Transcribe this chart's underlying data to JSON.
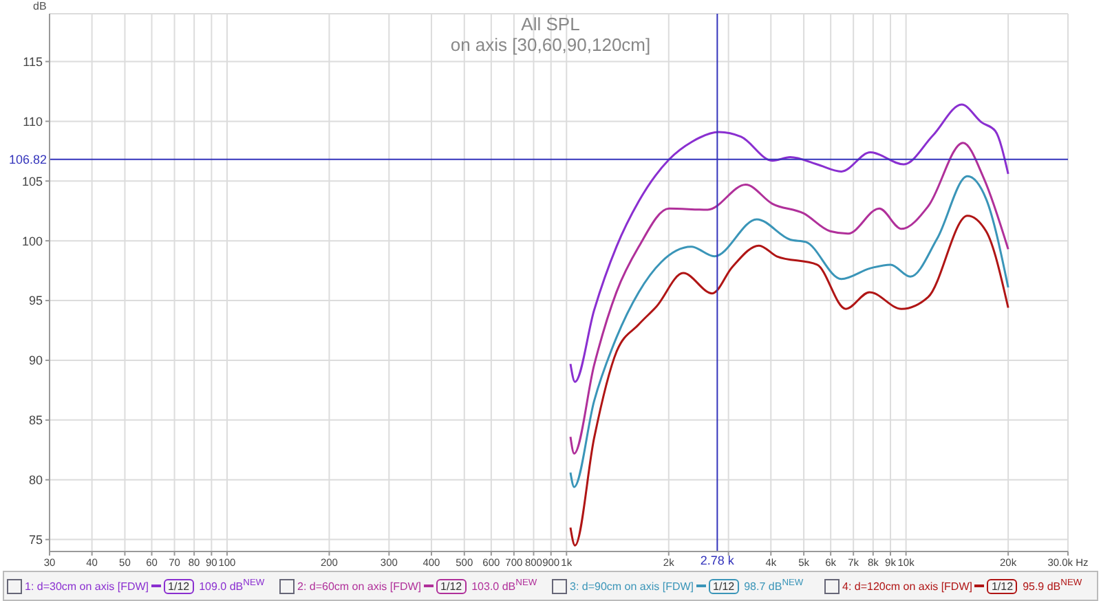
{
  "chart_data": {
    "type": "line",
    "title": "All SPL",
    "subtitle": "on axis [30,60,90,120cm]",
    "ylabel": "dB",
    "xlim": [
      30,
      30000
    ],
    "ylim": [
      74,
      119
    ],
    "log": "x",
    "grid": true,
    "legend": "bottom",
    "marker": "none",
    "line_style": "solid",
    "xticks": [
      30,
      40,
      50,
      60,
      70,
      80,
      90,
      100,
      200,
      300,
      400,
      500,
      600,
      700,
      800,
      900,
      {
        "value": 1000,
        "label": "1k"
      },
      {
        "value": 2000,
        "label": "2k"
      },
      {
        "value": 3000,
        "label": null
      },
      {
        "value": 4000,
        "label": "4k"
      },
      {
        "value": 5000,
        "label": "5k"
      },
      {
        "value": 6000,
        "label": "6k"
      },
      {
        "value": 7000,
        "label": "7k"
      },
      {
        "value": 8000,
        "label": "8k"
      },
      {
        "value": 9000,
        "label": "9k"
      },
      {
        "value": 10000,
        "label": "10k"
      },
      {
        "value": 20000,
        "label": "20k"
      },
      {
        "value": 30000,
        "label": "30.0k Hz"
      }
    ],
    "yticks": [
      75,
      80,
      85,
      90,
      95,
      100,
      105,
      110,
      115
    ],
    "ref_lines": [
      {
        "axis": "y",
        "value": 106.82,
        "label": "106.82",
        "color": "#3333bb"
      },
      {
        "axis": "x",
        "value": 2780,
        "label": "2.78 k",
        "color": "#3333bb"
      }
    ],
    "annotations": [
      "1/12",
      "109.0 dB$^{NEW}$",
      "1/12",
      "103.0 dB$^{NEW}$",
      "1/12",
      "98.7 dB$^{NEW}$",
      "1/12",
      "95.9 dB$^{NEW}$"
    ],
    "series": [
      {
        "name": "1: d=30cm on axis [FDW]",
        "color": "#8a2fd0",
        "x": [
          1027,
          1059,
          1206,
          1403,
          1632,
          2004,
          2345,
          2811,
          3269,
          4040,
          4560,
          5470,
          6450,
          7850,
          9850,
          11990,
          14590,
          16720,
          18310,
          20000
        ],
        "values": [
          89.7,
          88.2,
          94.2,
          99.5,
          103.3,
          106.8,
          108.3,
          109.1,
          108.7,
          106.7,
          107.0,
          106.4,
          105.8,
          107.4,
          106.4,
          108.8,
          111.4,
          109.9,
          109.2,
          105.6
        ]
      },
      {
        "name": "2: d=60cm on axis [FDW]",
        "color": "#b0309a",
        "x": [
          1027,
          1053,
          1206,
          1403,
          1632,
          2004,
          2606,
          3371,
          4040,
          4990,
          5980,
          6750,
          8340,
          9700,
          11630,
          14720,
          16970,
          20000
        ],
        "values": [
          83.6,
          82.2,
          89.6,
          95.7,
          99.5,
          102.7,
          102.6,
          104.7,
          103.1,
          102.3,
          100.8,
          100.6,
          102.7,
          101.0,
          102.9,
          108.2,
          105.2,
          99.3
        ]
      },
      {
        "name": "3: d=90cm on axis [FDW]",
        "color": "#3a95b8",
        "x": [
          1027,
          1053,
          1206,
          1403,
          1632,
          1898,
          2331,
          2727,
          3634,
          4560,
          5070,
          6450,
          7850,
          9000,
          10300,
          12360,
          15170,
          17220,
          20000
        ],
        "values": [
          80.6,
          79.4,
          86.6,
          91.9,
          95.7,
          98.2,
          99.5,
          98.7,
          101.8,
          100.1,
          99.9,
          96.8,
          97.7,
          98.0,
          97.0,
          100.2,
          105.4,
          103.5,
          96.1
        ]
      },
      {
        "name": "4: d=120cm on axis [FDW]",
        "color": "#b01515",
        "x": [
          1027,
          1059,
          1206,
          1403,
          1632,
          1841,
          2207,
          2686,
          3076,
          3689,
          4163,
          5470,
          6650,
          7810,
          9700,
          11630,
          15170,
          17220,
          20000
        ],
        "values": [
          76.0,
          74.5,
          83.5,
          90.7,
          93.0,
          94.5,
          97.3,
          95.6,
          97.8,
          99.6,
          98.7,
          98.0,
          94.3,
          95.7,
          94.3,
          95.3,
          102.1,
          100.8,
          94.4
        ]
      }
    ]
  }
}
